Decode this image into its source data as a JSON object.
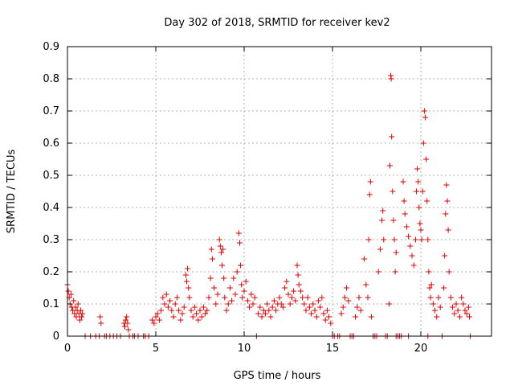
{
  "chart_data": {
    "type": "scatter",
    "title": "Day 302 of 2018, SRMTID for receiver kev2",
    "xlabel": "GPS time / hours",
    "ylabel": "SRMTID / TECUs",
    "xlim": [
      0,
      24
    ],
    "ylim": [
      0,
      0.9
    ],
    "xticks": [
      0,
      5,
      10,
      15,
      20
    ],
    "xtick_labels": [
      "0",
      "5",
      "10",
      "15",
      "20"
    ],
    "yticks": [
      0,
      0.1,
      0.2,
      0.3,
      0.4,
      0.5,
      0.6,
      0.7,
      0.8,
      0.9
    ],
    "ytick_labels": [
      "0",
      "0.1",
      "0.2",
      "0.3",
      "0.4",
      "0.5",
      "0.6",
      "0.7",
      "0.8",
      "0.9"
    ],
    "grid": true,
    "marker": "+",
    "color": "#e00000",
    "series": [
      {
        "name": "SRMTID",
        "points": [
          [
            0.0,
            0.16
          ],
          [
            0.05,
            0.14
          ],
          [
            0.1,
            0.12
          ],
          [
            0.15,
            0.1
          ],
          [
            0.2,
            0.13
          ],
          [
            0.25,
            0.09
          ],
          [
            0.3,
            0.08
          ],
          [
            0.35,
            0.11
          ],
          [
            0.4,
            0.07
          ],
          [
            0.45,
            0.09
          ],
          [
            0.5,
            0.06
          ],
          [
            0.55,
            0.08
          ],
          [
            0.6,
            0.1
          ],
          [
            0.65,
            0.07
          ],
          [
            0.7,
            0.05
          ],
          [
            0.75,
            0.08
          ],
          [
            0.8,
            0.06
          ],
          [
            0.85,
            0.07
          ],
          [
            1.0,
            0.0
          ],
          [
            1.3,
            0.0
          ],
          [
            1.6,
            0.0
          ],
          [
            1.8,
            0.0
          ],
          [
            1.85,
            0.06
          ],
          [
            1.9,
            0.04
          ],
          [
            2.1,
            0.0
          ],
          [
            2.4,
            0.0
          ],
          [
            2.6,
            0.0
          ],
          [
            2.8,
            0.0
          ],
          [
            3.0,
            0.0
          ],
          [
            3.2,
            0.04
          ],
          [
            3.25,
            0.03
          ],
          [
            3.3,
            0.05
          ],
          [
            3.35,
            0.06
          ],
          [
            3.4,
            0.04
          ],
          [
            3.45,
            0.02
          ],
          [
            3.5,
            0.0
          ],
          [
            3.7,
            0.0
          ],
          [
            4.0,
            0.0
          ],
          [
            4.3,
            0.0
          ],
          [
            4.6,
            0.0
          ],
          [
            4.8,
            0.05
          ],
          [
            4.9,
            0.04
          ],
          [
            5.0,
            0.06
          ],
          [
            5.1,
            0.07
          ],
          [
            5.2,
            0.05
          ],
          [
            5.3,
            0.08
          ],
          [
            5.4,
            0.12
          ],
          [
            5.5,
            0.1
          ],
          [
            5.6,
            0.13
          ],
          [
            5.7,
            0.09
          ],
          [
            5.8,
            0.11
          ],
          [
            5.9,
            0.08
          ],
          [
            6.0,
            0.06
          ],
          [
            6.1,
            0.1
          ],
          [
            6.2,
            0.12
          ],
          [
            6.3,
            0.08
          ],
          [
            6.4,
            0.05
          ],
          [
            6.5,
            0.07
          ],
          [
            6.6,
            0.09
          ],
          [
            6.7,
            0.19
          ],
          [
            6.75,
            0.17
          ],
          [
            6.8,
            0.21
          ],
          [
            6.85,
            0.15
          ],
          [
            6.9,
            0.12
          ],
          [
            7.0,
            0.08
          ],
          [
            7.1,
            0.06
          ],
          [
            7.2,
            0.09
          ],
          [
            7.3,
            0.07
          ],
          [
            7.4,
            0.05
          ],
          [
            7.5,
            0.08
          ],
          [
            7.6,
            0.06
          ],
          [
            7.7,
            0.09
          ],
          [
            7.8,
            0.07
          ],
          [
            7.9,
            0.08
          ],
          [
            8.0,
            0.12
          ],
          [
            8.1,
            0.18
          ],
          [
            8.15,
            0.27
          ],
          [
            8.2,
            0.24
          ],
          [
            8.3,
            0.15
          ],
          [
            8.4,
            0.1
          ],
          [
            8.5,
            0.13
          ],
          [
            8.6,
            0.3
          ],
          [
            8.65,
            0.28
          ],
          [
            8.7,
            0.26
          ],
          [
            8.75,
            0.22
          ],
          [
            8.8,
            0.27
          ],
          [
            8.85,
            0.18
          ],
          [
            8.9,
            0.12
          ],
          [
            9.0,
            0.08
          ],
          [
            9.1,
            0.1
          ],
          [
            9.2,
            0.15
          ],
          [
            9.3,
            0.11
          ],
          [
            9.4,
            0.18
          ],
          [
            9.5,
            0.13
          ],
          [
            9.6,
            0.2
          ],
          [
            9.7,
            0.32
          ],
          [
            9.75,
            0.29
          ],
          [
            9.8,
            0.22
          ],
          [
            9.85,
            0.16
          ],
          [
            9.9,
            0.12
          ],
          [
            10.0,
            0.14
          ],
          [
            10.1,
            0.17
          ],
          [
            10.2,
            0.11
          ],
          [
            10.3,
            0.09
          ],
          [
            10.4,
            0.13
          ],
          [
            10.5,
            0.1
          ],
          [
            10.6,
            0.12
          ],
          [
            10.8,
            0.07
          ],
          [
            10.9,
            0.09
          ],
          [
            11.0,
            0.06
          ],
          [
            11.1,
            0.08
          ],
          [
            11.2,
            0.07
          ],
          [
            11.3,
            0.1
          ],
          [
            11.4,
            0.08
          ],
          [
            11.5,
            0.06
          ],
          [
            11.6,
            0.09
          ],
          [
            11.7,
            0.11
          ],
          [
            11.8,
            0.08
          ],
          [
            11.9,
            0.1
          ],
          [
            12.0,
            0.12
          ],
          [
            12.1,
            0.1
          ],
          [
            12.2,
            0.09
          ],
          [
            12.3,
            0.15
          ],
          [
            12.4,
            0.17
          ],
          [
            12.5,
            0.13
          ],
          [
            12.6,
            0.1
          ],
          [
            12.7,
            0.12
          ],
          [
            12.8,
            0.14
          ],
          [
            12.9,
            0.11
          ],
          [
            13.0,
            0.22
          ],
          [
            13.05,
            0.19
          ],
          [
            13.1,
            0.16
          ],
          [
            13.2,
            0.14
          ],
          [
            13.3,
            0.12
          ],
          [
            13.4,
            0.1
          ],
          [
            13.5,
            0.08
          ],
          [
            13.6,
            0.12
          ],
          [
            13.7,
            0.09
          ],
          [
            13.8,
            0.07
          ],
          [
            13.9,
            0.1
          ],
          [
            14.0,
            0.08
          ],
          [
            14.1,
            0.06
          ],
          [
            14.2,
            0.11
          ],
          [
            14.3,
            0.09
          ],
          [
            14.4,
            0.12
          ],
          [
            14.5,
            0.07
          ],
          [
            14.6,
            0.05
          ],
          [
            14.7,
            0.08
          ],
          [
            14.8,
            0.06
          ],
          [
            14.9,
            0.04
          ],
          [
            15.1,
            0.0
          ],
          [
            15.3,
            0.0
          ],
          [
            15.5,
            0.07
          ],
          [
            15.6,
            0.09
          ],
          [
            15.7,
            0.12
          ],
          [
            15.8,
            0.15
          ],
          [
            15.9,
            0.11
          ],
          [
            16.0,
            0.0
          ],
          [
            16.1,
            0.0
          ],
          [
            16.3,
            0.06
          ],
          [
            16.4,
            0.09
          ],
          [
            16.5,
            0.12
          ],
          [
            16.6,
            0.08
          ],
          [
            16.8,
            0.24
          ],
          [
            16.9,
            0.16
          ],
          [
            17.0,
            0.12
          ],
          [
            17.05,
            0.3
          ],
          [
            17.1,
            0.44
          ],
          [
            17.15,
            0.48
          ],
          [
            17.2,
            0.06
          ],
          [
            17.4,
            0.0
          ],
          [
            17.6,
            0.2
          ],
          [
            17.7,
            0.27
          ],
          [
            17.8,
            0.36
          ],
          [
            17.85,
            0.39
          ],
          [
            17.9,
            0.3
          ],
          [
            18.0,
            0.0
          ],
          [
            18.1,
            0.0
          ],
          [
            18.2,
            0.1
          ],
          [
            18.25,
            0.53
          ],
          [
            18.3,
            0.81
          ],
          [
            18.32,
            0.8
          ],
          [
            18.35,
            0.62
          ],
          [
            18.4,
            0.45
          ],
          [
            18.45,
            0.36
          ],
          [
            18.5,
            0.3
          ],
          [
            18.55,
            0.2
          ],
          [
            18.6,
            0.26
          ],
          [
            18.7,
            0.0
          ],
          [
            18.8,
            0.0
          ],
          [
            18.9,
            0.0
          ],
          [
            19.0,
            0.48
          ],
          [
            19.05,
            0.42
          ],
          [
            19.1,
            0.38
          ],
          [
            19.2,
            0.34
          ],
          [
            19.3,
            0.31
          ],
          [
            19.4,
            0.28
          ],
          [
            19.5,
            0.25
          ],
          [
            19.6,
            0.22
          ],
          [
            19.7,
            0.3
          ],
          [
            19.75,
            0.45
          ],
          [
            19.8,
            0.52
          ],
          [
            19.85,
            0.48
          ],
          [
            19.9,
            0.4
          ],
          [
            19.95,
            0.35
          ],
          [
            20.0,
            0.33
          ],
          [
            20.05,
            0.3
          ],
          [
            20.1,
            0.45
          ],
          [
            20.15,
            0.6
          ],
          [
            20.2,
            0.7
          ],
          [
            20.25,
            0.68
          ],
          [
            20.3,
            0.55
          ],
          [
            20.35,
            0.42
          ],
          [
            20.4,
            0.3
          ],
          [
            20.45,
            0.2
          ],
          [
            20.5,
            0.15
          ],
          [
            20.55,
            0.12
          ],
          [
            20.6,
            0.16
          ],
          [
            20.7,
            0.1
          ],
          [
            20.8,
            0.08
          ],
          [
            20.9,
            0.06
          ],
          [
            21.0,
            0.12
          ],
          [
            21.1,
            0.09
          ],
          [
            21.3,
            0.15
          ],
          [
            21.35,
            0.25
          ],
          [
            21.4,
            0.38
          ],
          [
            21.45,
            0.47
          ],
          [
            21.5,
            0.42
          ],
          [
            21.55,
            0.33
          ],
          [
            21.6,
            0.2
          ],
          [
            21.7,
            0.12
          ],
          [
            21.8,
            0.09
          ],
          [
            21.9,
            0.07
          ],
          [
            22.0,
            0.1
          ],
          [
            22.1,
            0.08
          ],
          [
            22.2,
            0.06
          ],
          [
            22.3,
            0.12
          ],
          [
            22.4,
            0.1
          ],
          [
            22.5,
            0.08
          ],
          [
            22.6,
            0.07
          ],
          [
            22.7,
            0.09
          ],
          [
            22.75,
            0.06
          ],
          [
            2.2,
            0.0
          ],
          [
            3.8,
            0.0
          ],
          [
            4.4,
            0.0
          ],
          [
            10.7,
            0.0
          ],
          [
            15.0,
            0.0
          ],
          [
            15.4,
            0.0
          ],
          [
            16.2,
            0.0
          ],
          [
            17.3,
            0.0
          ],
          [
            17.5,
            0.0
          ],
          [
            18.6,
            0.0
          ],
          [
            19.3,
            0.0
          ],
          [
            20.4,
            0.0
          ],
          [
            21.2,
            0.0
          ],
          [
            22.8,
            0.0
          ]
        ]
      }
    ]
  }
}
